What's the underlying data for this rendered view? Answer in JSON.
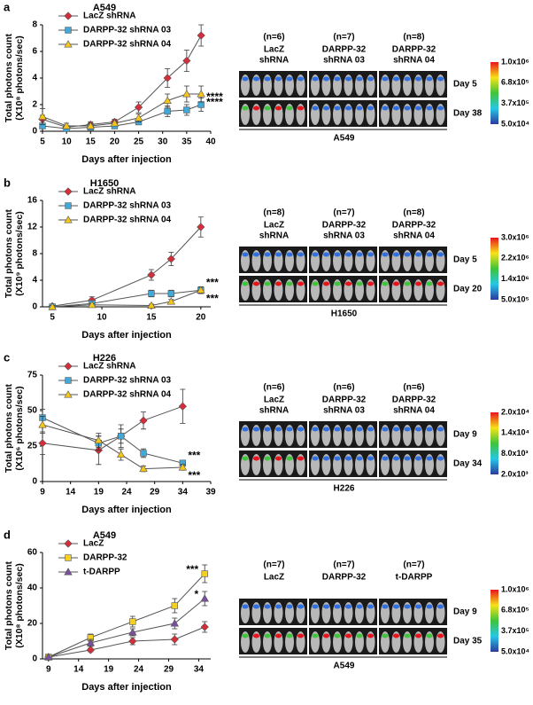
{
  "chart_data": [
    {
      "type": "line",
      "panel_label": "a",
      "title": "A549",
      "xlabel": "Days after injection",
      "ylabel": [
        "Total photons count",
        "(X10⁸ photons/sec)"
      ],
      "x": [
        5,
        10,
        15,
        20,
        25,
        31,
        35,
        38
      ],
      "xlim": [
        5,
        40
      ],
      "xticks": [
        5,
        10,
        15,
        20,
        25,
        30,
        35,
        40
      ],
      "ylim": [
        0,
        8
      ],
      "yticks": [
        0,
        2,
        4,
        6,
        8
      ],
      "series": [
        {
          "name": "LacZ shRNA",
          "color": "#d62d3a",
          "marker": "diamond",
          "values": [
            0.9,
            0.3,
            0.5,
            0.7,
            1.8,
            4.0,
            5.3,
            7.2
          ],
          "errors": [
            0.3,
            0.1,
            0.2,
            0.2,
            0.4,
            0.7,
            0.8,
            0.8
          ]
        },
        {
          "name": "DARPP-32 shRNA 03",
          "color": "#41a8d8",
          "marker": "square",
          "values": [
            0.4,
            0.2,
            0.3,
            0.4,
            0.7,
            1.5,
            1.6,
            2.0
          ],
          "errors": [
            0.2,
            0.1,
            0.1,
            0.1,
            0.2,
            0.4,
            0.4,
            0.5
          ]
        },
        {
          "name": "DARPP-32 shRNA 04",
          "color": "#f5c518",
          "marker": "triangle",
          "values": [
            1.1,
            0.4,
            0.4,
            0.6,
            1.0,
            2.3,
            2.8,
            2.8
          ],
          "errors": [
            0.6,
            0.2,
            0.2,
            0.2,
            0.3,
            0.5,
            0.6,
            0.6
          ]
        }
      ],
      "annotations": [
        "****",
        "****"
      ],
      "imaging": {
        "groups": [
          {
            "n": "(n=6)",
            "name": [
              "LacZ",
              "shRNA"
            ]
          },
          {
            "n": "(n=7)",
            "name": [
              "DARPP-32",
              "shRNA 03"
            ]
          },
          {
            "n": "(n=8)",
            "name": [
              "DARPP-32",
              "shRNA 04"
            ]
          }
        ],
        "days": [
          "Day 5",
          "Day 38"
        ],
        "colorbar": [
          "1.0x10⁶",
          "6.8x10⁵",
          "3.7x10⁵",
          "5.0x10⁴"
        ],
        "caption": "A549"
      }
    },
    {
      "type": "line",
      "panel_label": "b",
      "title": "H1650",
      "xlabel": "Days after injection",
      "ylabel": [
        "Total photons count",
        "(X10⁹ photons/sec)"
      ],
      "x": [
        5,
        9,
        15,
        17,
        20
      ],
      "xlim": [
        4,
        21
      ],
      "xticks": [
        5,
        10,
        15,
        20
      ],
      "ylim": [
        0,
        16
      ],
      "yticks": [
        0,
        4,
        8,
        12,
        16
      ],
      "series": [
        {
          "name": "LacZ shRNA",
          "color": "#d62d3a",
          "marker": "diamond",
          "values": [
            0.1,
            1.0,
            4.8,
            7.2,
            12.0
          ],
          "errors": [
            0.3,
            0.5,
            0.8,
            1.0,
            1.5
          ]
        },
        {
          "name": "DARPP-32 shRNA 03",
          "color": "#41a8d8",
          "marker": "square",
          "values": [
            0.0,
            0.5,
            2.0,
            2.0,
            2.5
          ],
          "errors": [
            0.2,
            0.3,
            0.5,
            0.5,
            0.5
          ]
        },
        {
          "name": "DARPP-32 shRNA 04",
          "color": "#f5c518",
          "marker": "triangle",
          "values": [
            0.0,
            0.3,
            0.2,
            0.8,
            2.5
          ],
          "errors": [
            0.2,
            0.2,
            0.2,
            0.3,
            0.5
          ]
        }
      ],
      "annotations": [
        "***",
        "***"
      ],
      "imaging": {
        "groups": [
          {
            "n": "(n=8)",
            "name": [
              "LacZ",
              "shRNA"
            ]
          },
          {
            "n": "(n=7)",
            "name": [
              "DARPP-32",
              "shRNA 03"
            ]
          },
          {
            "n": "(n=8)",
            "name": [
              "DARPP-32",
              "shRNA 04"
            ]
          }
        ],
        "days": [
          "Day 5",
          "Day 20"
        ],
        "colorbar": [
          "3.0x10⁶",
          "2.2x10⁶",
          "1.4x10⁶",
          "5.0x10⁵"
        ],
        "caption": "H1650"
      }
    },
    {
      "type": "line",
      "panel_label": "c",
      "title": "H226",
      "xlabel": "Days after injection",
      "ylabel": [
        "Total photons count",
        "(X10⁶ photons/sec)"
      ],
      "x": [
        9,
        19,
        23,
        27,
        34
      ],
      "xlim": [
        9,
        39
      ],
      "xticks": [
        9,
        14,
        19,
        24,
        29,
        34,
        39
      ],
      "ylim": [
        0,
        75
      ],
      "yticks": [
        0,
        25,
        50,
        75
      ],
      "series": [
        {
          "name": "LacZ shRNA",
          "color": "#d62d3a",
          "marker": "diamond",
          "values": [
            27,
            22,
            32,
            43,
            53
          ],
          "errors": [
            8,
            10,
            8,
            6,
            12
          ]
        },
        {
          "name": "DARPP-32 shRNA 03",
          "color": "#41a8d8",
          "marker": "square",
          "values": [
            45,
            27,
            32,
            20,
            13
          ],
          "errors": [
            6,
            5,
            5,
            3,
            2
          ]
        },
        {
          "name": "DARPP-32 shRNA 04",
          "color": "#f5c518",
          "marker": "triangle",
          "values": [
            40,
            29,
            19,
            9,
            10
          ],
          "errors": [
            6,
            5,
            4,
            2,
            2
          ]
        }
      ],
      "annotations": [
        "***",
        "***"
      ],
      "imaging": {
        "groups": [
          {
            "n": "(n=6)",
            "name": [
              "LacZ",
              "shRNA"
            ]
          },
          {
            "n": "(n=6)",
            "name": [
              "DARPP-32",
              "shRNA 03"
            ]
          },
          {
            "n": "(n=6)",
            "name": [
              "DARPP-32",
              "shRNA 04"
            ]
          }
        ],
        "days": [
          "Day 9",
          "Day 34"
        ],
        "colorbar": [
          "2.0x10⁴",
          "1.4x10⁴",
          "8.0x10³",
          "2.0x10³"
        ],
        "caption": "H226"
      }
    },
    {
      "type": "line",
      "panel_label": "d",
      "title": "A549",
      "xlabel": "Days after injection",
      "ylabel": [
        "Total photons count",
        "(X10⁸ photons/sec)"
      ],
      "x": [
        9,
        16,
        23,
        30,
        35
      ],
      "xlim": [
        8,
        36
      ],
      "xticks": [
        9,
        14,
        19,
        24,
        29,
        34
      ],
      "ylim": [
        0,
        60
      ],
      "yticks": [
        0,
        20,
        40,
        60
      ],
      "series": [
        {
          "name": "LacZ",
          "color": "#d62d3a",
          "marker": "diamond",
          "values": [
            1,
            5,
            10,
            11,
            18
          ],
          "errors": [
            1,
            1,
            2,
            3,
            3
          ]
        },
        {
          "name": "DARPP-32",
          "color": "#f5d020",
          "marker": "square",
          "values": [
            1,
            12,
            21,
            30,
            48
          ],
          "errors": [
            1,
            2,
            3,
            4,
            5
          ]
        },
        {
          "name": "t-DARPP",
          "color": "#7b4fa0",
          "marker": "triangle",
          "values": [
            1,
            9,
            15,
            20,
            34
          ],
          "errors": [
            1,
            2,
            2,
            3,
            4
          ]
        }
      ],
      "annotations": [
        "***",
        "*"
      ],
      "imaging": {
        "groups": [
          {
            "n": "(n=7)",
            "name": [
              "LacZ"
            ]
          },
          {
            "n": "(n=7)",
            "name": [
              "DARPP-32"
            ]
          },
          {
            "n": "(n=7)",
            "name": [
              "t-DARPP"
            ]
          }
        ],
        "days": [
          "Day 9",
          "Day 35"
        ],
        "colorbar": [
          "1.0x10⁶",
          "6.8x10⁵",
          "3.7x10⁵",
          "5.0x10⁴"
        ],
        "caption": "A549"
      }
    }
  ]
}
